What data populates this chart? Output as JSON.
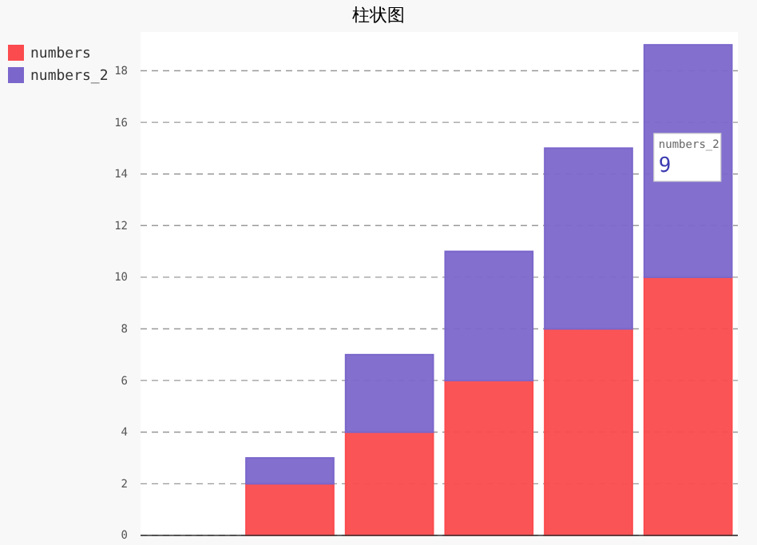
{
  "chart_data": {
    "type": "bar",
    "title": "柱状图",
    "stacked": true,
    "categories": [
      null,
      null,
      null,
      null,
      null,
      null
    ],
    "series": [
      {
        "name": "numbers",
        "color": "#fb4b4e",
        "values": [
          null,
          2,
          4,
          6,
          8,
          10
        ]
      },
      {
        "name": "numbers_2",
        "color": "#7b67cb",
        "values": [
          null,
          1,
          3,
          5,
          7,
          9
        ]
      }
    ],
    "ylim": [
      0,
      19.5
    ],
    "yticks": [
      0,
      2,
      4,
      6,
      8,
      10,
      12,
      14,
      16,
      18
    ],
    "grid": "y",
    "legend": "top left",
    "annotations": [
      "numbers_2 9"
    ]
  }
}
